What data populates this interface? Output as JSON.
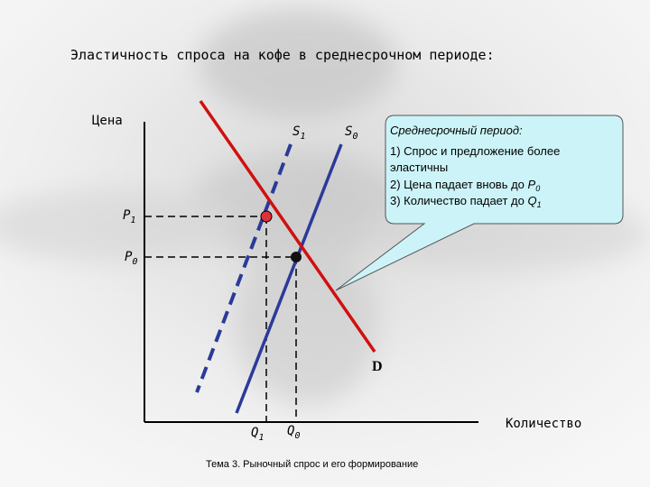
{
  "title": "Эластичность спроса на кофе в среднесрочном периоде:",
  "axes": {
    "y_label": "Цена",
    "x_label": "Количество"
  },
  "curves": {
    "s1": {
      "main": "S",
      "sub": "1"
    },
    "s0": {
      "main": "S",
      "sub": "0"
    },
    "d": "D"
  },
  "levels": {
    "p1": {
      "main": "P",
      "sub": "1"
    },
    "p0": {
      "main": "P",
      "sub": "0"
    },
    "q1": {
      "main": "Q",
      "sub": "1"
    },
    "q0": {
      "main": "Q",
      "sub": "0"
    }
  },
  "callout": {
    "heading": "Среднесрочный период:",
    "line1": "1) Спрос и предложение более",
    "line1b": "эластичны",
    "line2": {
      "text": "2) Цена падает вновь до ",
      "main": "P",
      "sub": "0"
    },
    "line3": {
      "text": "3) Количество падает до ",
      "main": "Q",
      "sub": "1"
    }
  },
  "footer": "Тема 3. Рыночный спрос и его формирование"
}
